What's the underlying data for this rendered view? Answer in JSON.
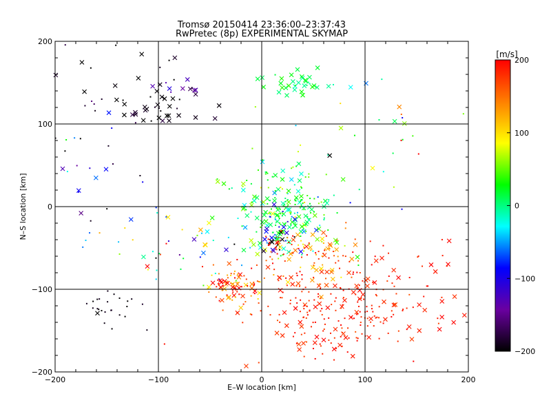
{
  "chart_data": {
    "type": "scatter",
    "title": "Tromsø 20150414 23:36:00–23:37:43",
    "subtitle": "RwPretec (8p) EXPERIMENTAL SKYMAP",
    "xlabel": "E–W location [km]",
    "ylabel": "N–S location [km]",
    "xlim": [
      -200,
      200
    ],
    "ylim": [
      -200,
      200
    ],
    "x_ticks": [
      -200,
      -100,
      0,
      100,
      200
    ],
    "y_ticks": [
      -200,
      -100,
      0,
      100,
      200
    ],
    "grid": true,
    "colorbar": {
      "label": "[m/s]",
      "range": [
        -200,
        200
      ],
      "ticks": [
        200,
        100,
        0,
        -100,
        -200
      ],
      "colormap": [
        "#000000",
        "#6a00a0",
        "#0000ff",
        "#00ffff",
        "#00ff00",
        "#ffff00",
        "#ff7f00",
        "#ff0000"
      ]
    },
    "marker_types": [
      "dot",
      "cross"
    ],
    "clusters": [
      {
        "name": "black-nw-crosses",
        "cx": -95,
        "cy": 120,
        "sx": 25,
        "sy": 12,
        "v": -195,
        "vsd": 10,
        "n": 28,
        "cross": 0.85
      },
      {
        "name": "violet-nw",
        "cx": -75,
        "cy": 150,
        "sx": 18,
        "sy": 10,
        "v": -150,
        "vsd": 25,
        "n": 12,
        "cross": 0.6
      },
      {
        "name": "black-nw-dots",
        "cx": -140,
        "cy": 140,
        "sx": 40,
        "sy": 45,
        "v": -195,
        "vsd": 10,
        "n": 30,
        "cross": 0.2
      },
      {
        "name": "cyan-north",
        "cx": 35,
        "cy": 150,
        "sx": 20,
        "sy": 7,
        "v": 10,
        "vsd": 15,
        "n": 35,
        "cross": 0.85
      },
      {
        "name": "black-sw",
        "cx": -150,
        "cy": -125,
        "sx": 15,
        "sy": 12,
        "v": -195,
        "vsd": 5,
        "n": 25,
        "cross": 0.1
      },
      {
        "name": "west-mixed",
        "cx": -170,
        "cy": 50,
        "sx": 25,
        "sy": 50,
        "v": -80,
        "vsd": 80,
        "n": 25,
        "cross": 0.3
      },
      {
        "name": "central-cyan",
        "cx": 25,
        "cy": -10,
        "sx": 22,
        "sy": 22,
        "v": 15,
        "vsd": 30,
        "n": 170,
        "cross": 0.45
      },
      {
        "name": "central-blue",
        "cx": 15,
        "cy": -30,
        "sx": 12,
        "sy": 14,
        "v": -90,
        "vsd": 25,
        "n": 25,
        "cross": 0.5
      },
      {
        "name": "central-black",
        "cx": 15,
        "cy": -42,
        "sx": 6,
        "sy": 6,
        "v": -195,
        "vsd": 5,
        "n": 10,
        "cross": 0.7
      },
      {
        "name": "central-red",
        "cx": 12,
        "cy": -45,
        "sx": 6,
        "sy": 8,
        "v": 190,
        "vsd": 10,
        "n": 14,
        "cross": 0.3
      },
      {
        "name": "central-green",
        "cx": 20,
        "cy": 20,
        "sx": 30,
        "sy": 25,
        "v": 40,
        "vsd": 30,
        "n": 60,
        "cross": 0.15
      },
      {
        "name": "se-red",
        "cx": 70,
        "cy": -120,
        "sx": 40,
        "sy": 35,
        "v": 185,
        "vsd": 12,
        "n": 260,
        "cross": 0.18
      },
      {
        "name": "sw-orange-red",
        "cx": -25,
        "cy": -95,
        "sx": 14,
        "sy": 12,
        "v": 160,
        "vsd": 40,
        "n": 80,
        "cross": 0.3
      },
      {
        "name": "mid-orange",
        "cx": 50,
        "cy": -55,
        "sx": 25,
        "sy": 20,
        "v": 130,
        "vsd": 50,
        "n": 90,
        "cross": 0.35
      },
      {
        "name": "west-mid-mixed",
        "cx": -80,
        "cy": -50,
        "sx": 40,
        "sy": 25,
        "v": 30,
        "vsd": 120,
        "n": 50,
        "cross": 0.3
      },
      {
        "name": "east-scatter",
        "cx": 130,
        "cy": 60,
        "sx": 40,
        "sy": 60,
        "v": 50,
        "vsd": 130,
        "n": 25,
        "cross": 0.3
      },
      {
        "name": "east-red",
        "cx": 160,
        "cy": -100,
        "sx": 30,
        "sy": 30,
        "v": 190,
        "vsd": 10,
        "n": 30,
        "cross": 0.4
      }
    ]
  }
}
